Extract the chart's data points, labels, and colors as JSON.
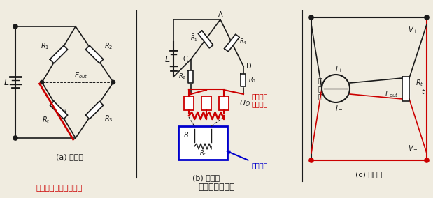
{
  "bg_color": "#f0ece0",
  "BLACK": "#1a1a1a",
  "RED": "#cc0000",
  "BLUE": "#0000cc",
  "label_a": "(a) 二线制",
  "label_b": "(b) 三线制",
  "label_c": "(c) 四线制",
  "bottom_text1": "图中红色线即为外接线",
  "bottom_text2": "热电际接线方式",
  "ann1_line1": "表示外接",
  "ann1_line2": "导线电际",
  "ann2": "热电际体"
}
